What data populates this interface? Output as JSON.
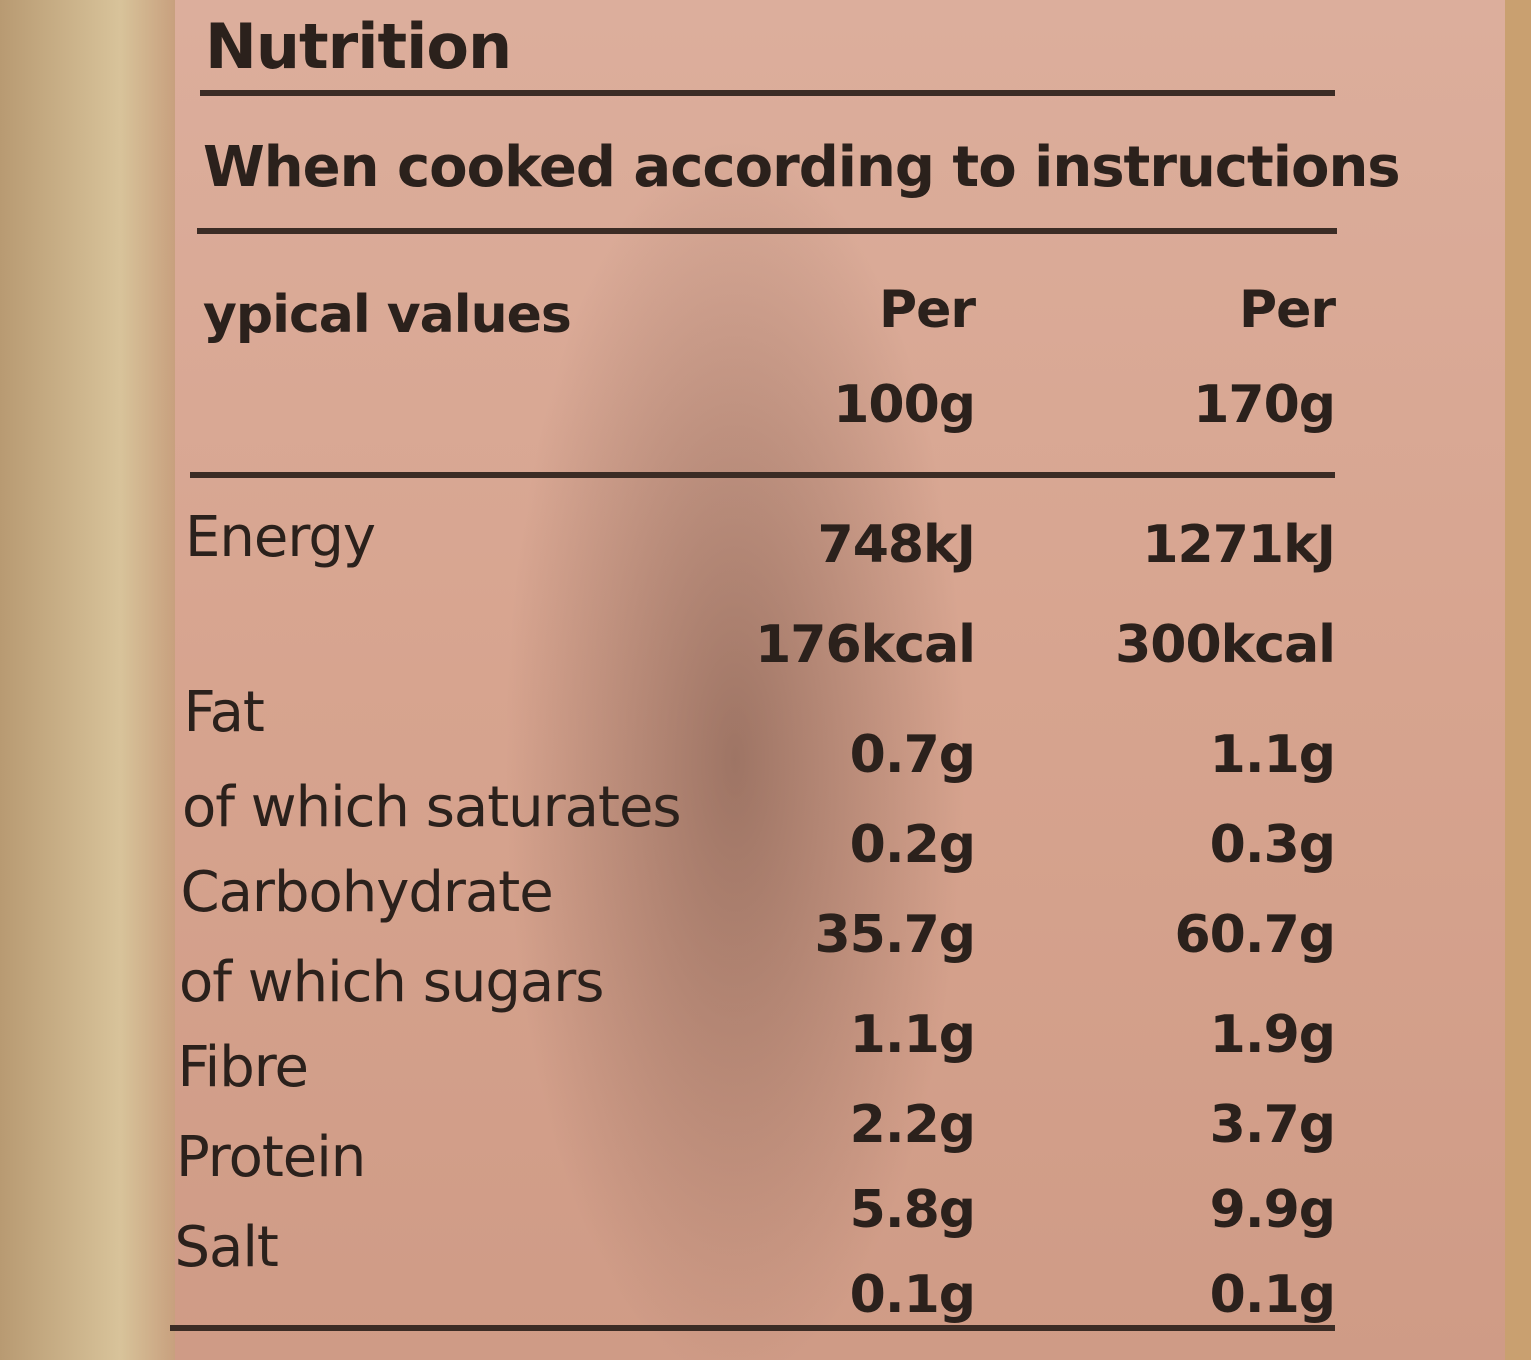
{
  "header": {
    "title": "Nutrition",
    "subtitle": "When cooked according to instructions"
  },
  "table": {
    "header_label": "ypical values",
    "columns": [
      [
        "Per",
        "100g"
      ],
      [
        "Per",
        "170g"
      ]
    ],
    "labels": [
      "Energy",
      "Fat",
      "of which saturates",
      "Carbohydrate",
      "of which sugars",
      "Fibre",
      "Protein",
      "Salt"
    ],
    "values": [
      [
        "748kJ",
        "176kcal",
        "0.7g",
        "0.2g",
        "35.7g",
        "1.1g",
        "2.2g",
        "5.8g",
        "0.1g"
      ],
      [
        "1271kJ",
        "300kcal",
        "1.1g",
        "0.3g",
        "60.7g",
        "1.9g",
        "3.7g",
        "9.9g",
        "0.1g"
      ]
    ]
  }
}
